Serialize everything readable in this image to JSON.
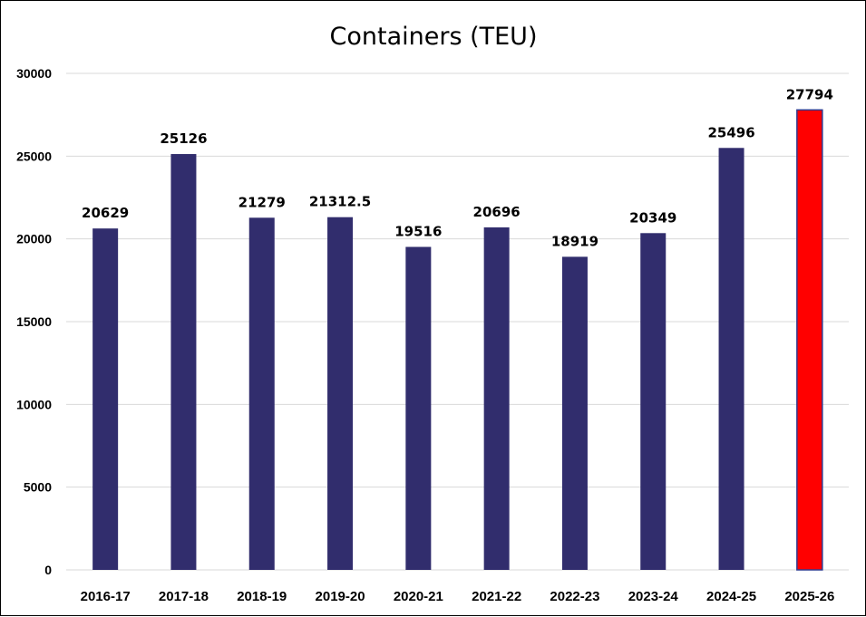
{
  "chart_data": {
    "type": "bar",
    "title": "Containers (TEU)",
    "xlabel": "",
    "ylabel": "",
    "categories": [
      "2016-17",
      "2017-18",
      "2018-19",
      "2019-20",
      "2020-21",
      "2021-22",
      "2022-23",
      "2023-24",
      "2024-25",
      "2025-26"
    ],
    "values": [
      20629,
      25126,
      21279,
      21312.5,
      19516,
      20696,
      18919,
      20349,
      25496,
      27794
    ],
    "data_labels": [
      "20629",
      "25126",
      "21279",
      "21312.5",
      "19516",
      "20696",
      "18919",
      "20349",
      "25496",
      "27794"
    ],
    "ylim": [
      0,
      30000
    ],
    "yticks": [
      "0",
      "5000",
      "10000",
      "15000",
      "20000",
      "25000",
      "30000"
    ],
    "grid": true,
    "legend": "none",
    "colors": {
      "bar": "#312D6D",
      "highlight_bar": "#FF0000",
      "highlight_border": "#2F3A8F",
      "highlight_index": 9
    }
  }
}
